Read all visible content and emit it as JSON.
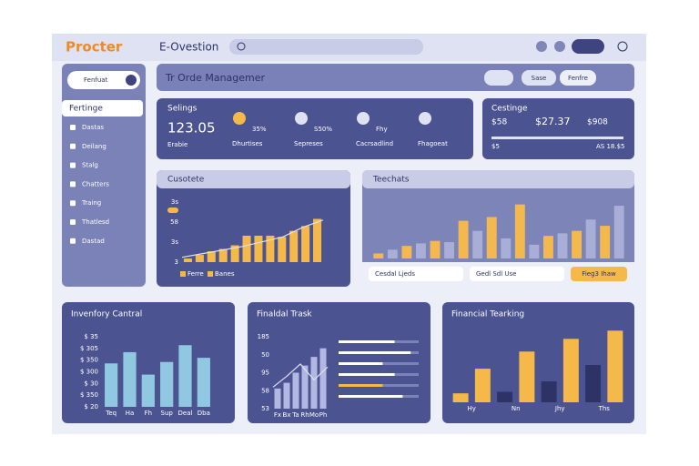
{
  "header": {
    "logo": "Procter",
    "app": "E-Ovestion"
  },
  "sidebar": {
    "search": "Fenfuat",
    "items": [
      "Fertinge",
      "Dastas",
      "Deilang",
      "Stalg",
      "Chatters",
      "Traing",
      "Thatlesd",
      "Dastad"
    ]
  },
  "banner": {
    "title": "Tr Orde Managemer",
    "buttons": [
      "Sase",
      "Fenfre"
    ]
  },
  "stats": {
    "title": "Selings",
    "main": "123.05",
    "main_label": "Erabie",
    "items": [
      {
        "value": "35%",
        "label": "Dhurtises"
      },
      {
        "value": "S50%",
        "label": "Sepreses"
      },
      {
        "value": "Fhy",
        "label": "Cacrsadlind"
      },
      {
        "value": "",
        "label": "Fhagoeat"
      }
    ]
  },
  "costs": {
    "title": "Cestinge",
    "values": [
      "$58",
      "$27.37",
      "$908"
    ],
    "foot": [
      "$5",
      "AS 18.$5"
    ]
  },
  "charts": {
    "cusotete": {
      "title": "Cusotete",
      "axis_labels": [
        "3s",
        "58",
        "3s",
        "3"
      ],
      "legend": [
        "Ferre",
        "Banes"
      ],
      "ylim": [
        0,
        100
      ],
      "colors": [
        "#f5b94a"
      ],
      "values": [
        6,
        12,
        18,
        22,
        28,
        44,
        44,
        44,
        42,
        52,
        60,
        72
      ],
      "trend": [
        8,
        14,
        20,
        26,
        34,
        42,
        58,
        70
      ]
    },
    "teechats": {
      "title": "Teechats",
      "dropdowns": [
        "Cesdal Ljeds",
        "Gedl Sdl Use"
      ],
      "button": "Fieg3 Ihaw",
      "ylim": [
        0,
        100
      ],
      "colors": [
        "#f4b94e",
        "#a8aed6"
      ],
      "values": [
        8,
        14,
        20,
        24,
        28,
        26,
        60,
        44,
        66,
        32,
        86,
        22,
        36,
        40,
        44,
        62,
        52,
        84
      ]
    },
    "inventory": {
      "title": "Invenfory Cantral",
      "axis_labels": [
        "$ 35",
        "$ 305",
        "$ 350",
        "$ 300",
        "$ 30",
        "$ 350",
        "$ 20"
      ],
      "x_labels": [
        "Teq",
        "Ha",
        "Fh",
        "Sup",
        "Deal",
        "Dba"
      ],
      "ylim": [
        0,
        100
      ],
      "colors": [
        "#8fc8e0"
      ],
      "values": [
        62,
        78,
        46,
        64,
        88,
        70
      ]
    },
    "finance_track": {
      "title": "Finaldal Trask",
      "axis_labels": [
        "185",
        "50",
        "95",
        "58",
        "53"
      ],
      "x_labels": [
        "Fx",
        "Bx",
        "Ta",
        "Rh",
        "Mo",
        "Ph"
      ],
      "ylim": [
        0,
        100
      ],
      "colors": [
        "#b3b8e2"
      ],
      "values": [
        28,
        36,
        50,
        60,
        72,
        84
      ],
      "trend": [
        30,
        45,
        62,
        40,
        58
      ],
      "progress": [
        70,
        90,
        55,
        70,
        55,
        80
      ]
    },
    "finance_tearking": {
      "title": "Financial Tearking",
      "x_labels": [
        "Hy",
        "Nn",
        "Jhy",
        "Ths"
      ],
      "ylim": [
        0,
        100
      ],
      "colors": [
        "#f5b94a",
        "#f5b94a",
        "#2d3366",
        "#f5b94a",
        "#2d3366",
        "#f5b94a",
        "#2d3366",
        "#f5b94a"
      ],
      "values": [
        12,
        45,
        14,
        68,
        28,
        85,
        50,
        96
      ]
    }
  }
}
